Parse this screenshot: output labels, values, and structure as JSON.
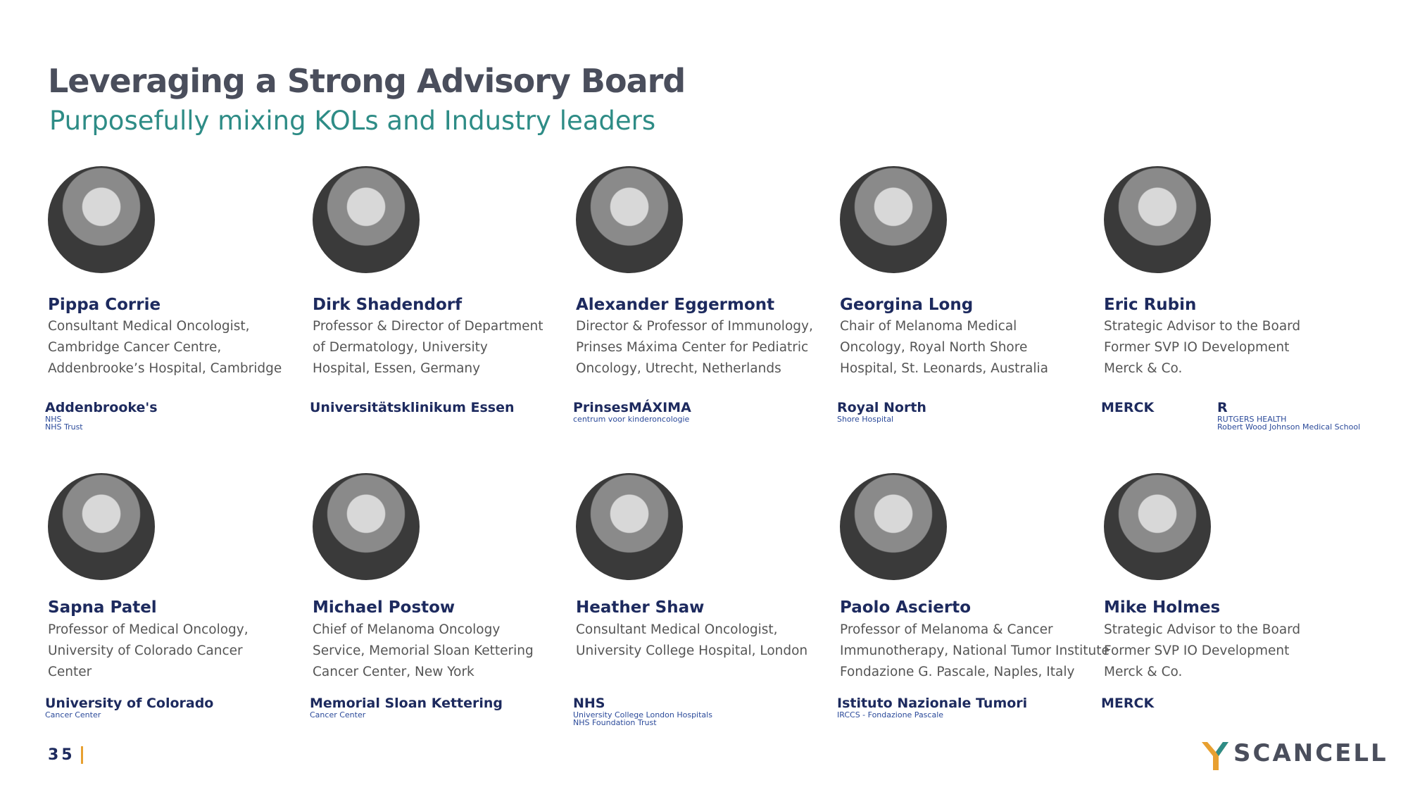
{
  "header": {
    "title": "Leveraging a Strong Advisory Board",
    "subtitle": "Purposefully mixing KOLs and Industry leaders"
  },
  "members": [
    {
      "name": "Pippa Corrie",
      "lines": [
        "Consultant Medical Oncologist,",
        "Cambridge Cancer Centre,",
        "Addenbrooke’s Hospital, Cambridge"
      ],
      "logos": [
        [
          "Addenbrooke's",
          "NHS",
          "NHS Trust"
        ]
      ]
    },
    {
      "name": "Dirk Shadendorf",
      "lines": [
        "Professor & Director of Department",
        "of Dermatology, University",
        "Hospital, Essen, Germany"
      ],
      "logos": [
        [
          "Universitätsklinikum Essen"
        ]
      ]
    },
    {
      "name": "Alexander Eggermont",
      "lines": [
        "Director & Professor of Immunology,",
        "Prinses Máxima Center for Pediatric",
        "Oncology, Utrecht, Netherlands"
      ],
      "logos": [
        [
          "PrinsesMÁXIMA",
          "centrum voor kinderoncologie"
        ]
      ]
    },
    {
      "name": "Georgina Long",
      "lines": [
        "Chair of Melanoma Medical",
        "Oncology, Royal North Shore",
        "Hospital, St. Leonards, Australia"
      ],
      "logos": [
        [
          "Royal North",
          "Shore Hospital"
        ]
      ]
    },
    {
      "name": "Eric Rubin",
      "lines": [
        "Strategic Advisor to the Board",
        "Former SVP IO Development",
        "Merck & Co."
      ],
      "logos": [
        [
          "MERCK"
        ],
        [
          "R",
          "RUTGERS HEALTH",
          "Robert Wood Johnson Medical School"
        ]
      ]
    },
    {
      "name": "Sapna Patel",
      "lines": [
        "Professor of Medical Oncology,",
        "University of Colorado Cancer",
        "Center"
      ],
      "logos": [
        [
          "University of Colorado",
          "Cancer Center"
        ]
      ]
    },
    {
      "name": "Michael Postow",
      "lines": [
        "Chief of Melanoma Oncology",
        "Service, Memorial Sloan Kettering",
        "Cancer Center, New York"
      ],
      "logos": [
        [
          "Memorial Sloan Kettering",
          "Cancer Center"
        ]
      ]
    },
    {
      "name": "Heather Shaw",
      "lines": [
        "Consultant Medical Oncologist,",
        "University College Hospital, London"
      ],
      "logos": [
        [
          "NHS",
          "University College London Hospitals",
          "NHS Foundation Trust"
        ]
      ]
    },
    {
      "name": "Paolo Ascierto",
      "lines": [
        "Professor of  Melanoma & Cancer",
        "Immunotherapy, National Tumor Institute",
        "Fondazione G. Pascale, Naples, Italy"
      ],
      "logos": [
        [
          "Istituto Nazionale Tumori",
          "IRCCS - Fondazione Pascale"
        ]
      ]
    },
    {
      "name": "Mike Holmes",
      "lines": [
        "Strategic Advisor to the Board",
        "Former SVP IO Development",
        "Merck & Co."
      ],
      "logos": [
        [
          "MERCK"
        ]
      ]
    }
  ],
  "footer": {
    "page": "35",
    "brand": "SCANCELL"
  }
}
